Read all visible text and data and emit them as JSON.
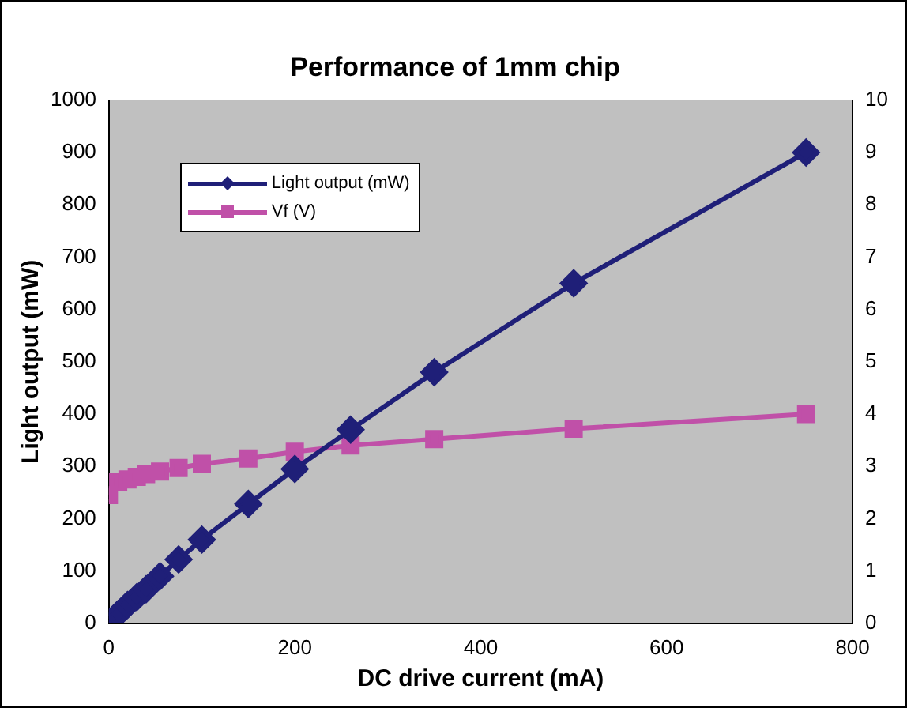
{
  "chart_data": {
    "type": "line",
    "title": "Performance of 1mm chip",
    "xlabel": "DC drive current (mA)",
    "ylabel": "Light output (mW)",
    "xlim": [
      0,
      800
    ],
    "xticks": [
      0,
      200,
      400,
      600,
      800
    ],
    "ylim": [
      0,
      1000
    ],
    "yticks": [
      0,
      100,
      200,
      300,
      400,
      500,
      600,
      700,
      800,
      900,
      1000
    ],
    "y2lim": [
      0,
      10
    ],
    "y2ticks": [
      0,
      1,
      2,
      3,
      4,
      5,
      6,
      7,
      8,
      9,
      10
    ],
    "grid": false,
    "legend": "top left",
    "line_style": "solid",
    "series": [
      {
        "name": "Light output (mW)",
        "color": "#1f1f78",
        "marker": "diamond",
        "x": [
          0,
          10,
          20,
          30,
          40,
          55,
          75,
          100,
          150,
          200,
          260,
          350,
          500,
          750
        ],
        "values": [
          0,
          18,
          35,
          50,
          65,
          90,
          122,
          160,
          228,
          295,
          370,
          480,
          650,
          900
        ]
      },
      {
        "name": "Vf (V)",
        "color": "#c050a8",
        "marker": "square",
        "axis": "y2",
        "x": [
          0,
          10,
          20,
          30,
          40,
          55,
          75,
          100,
          150,
          200,
          260,
          350,
          500,
          750
        ],
        "values": [
          2.45,
          2.7,
          2.75,
          2.8,
          2.85,
          2.9,
          2.97,
          3.05,
          3.15,
          3.28,
          3.4,
          3.52,
          3.72,
          4.0
        ]
      }
    ]
  }
}
